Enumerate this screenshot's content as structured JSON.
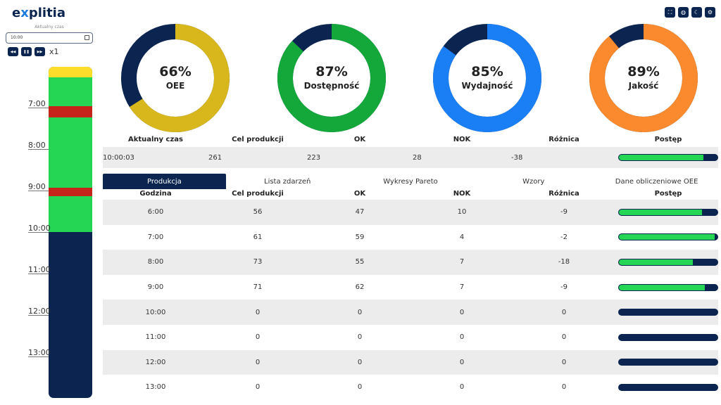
{
  "logo": {
    "text_a": "e",
    "text_x": "x",
    "text_b": "plitia"
  },
  "sidebar": {
    "time_label": "Aktualny czas",
    "time_value": "10:00",
    "speed": "x1",
    "ticks": [
      "7:00",
      "8:00",
      "9:00",
      "10:00",
      "11:00",
      "12:00",
      "13:00"
    ]
  },
  "top_icons": [
    "fullscreen-icon",
    "globe-icon",
    "moon-icon",
    "gear-icon"
  ],
  "colors": {
    "navy": "#0b2550",
    "green": "#25d654",
    "red": "#c4241a",
    "yellow": "#fbdd2a"
  },
  "kpis": [
    {
      "label": "OEE",
      "value": "66%",
      "fraction": 0.66,
      "color": "#d8b71c"
    },
    {
      "label": "Dostępność",
      "value": "87%",
      "fraction": 0.87,
      "color": "#14a83a"
    },
    {
      "label": "Wydajność",
      "value": "85%",
      "fraction": 0.85,
      "color": "#1a7ff5"
    },
    {
      "label": "Jakość",
      "value": "89%",
      "fraction": 0.89,
      "color": "#fb8a2e"
    }
  ],
  "summary": {
    "headers": [
      "Aktualny czas",
      "Cel produkcji",
      "OK",
      "NOK",
      "Różnica",
      "Postęp"
    ],
    "values": [
      "10:00:03",
      "261",
      "223",
      "28",
      "-38"
    ],
    "progress": 0.854
  },
  "tabs": [
    "Produkcja",
    "Lista zdarzeń",
    "Wykresy Pareto",
    "Wzory",
    "Dane obliczeniowe OEE"
  ],
  "table": {
    "headers": [
      "Godzina",
      "Cel produkcji",
      "OK",
      "NOK",
      "Różnica",
      "Postęp"
    ],
    "rows": [
      {
        "c": [
          "6:00",
          "56",
          "47",
          "10",
          "-9"
        ],
        "p": 0.84
      },
      {
        "c": [
          "7:00",
          "61",
          "59",
          "4",
          "-2"
        ],
        "p": 0.97
      },
      {
        "c": [
          "8:00",
          "73",
          "55",
          "7",
          "-18"
        ],
        "p": 0.75
      },
      {
        "c": [
          "9:00",
          "71",
          "62",
          "7",
          "-9"
        ],
        "p": 0.87
      },
      {
        "c": [
          "10:00",
          "0",
          "0",
          "0",
          "0"
        ],
        "p": 0
      },
      {
        "c": [
          "11:00",
          "0",
          "0",
          "0",
          "0"
        ],
        "p": 0
      },
      {
        "c": [
          "12:00",
          "0",
          "0",
          "0",
          "0"
        ],
        "p": 0
      },
      {
        "c": [
          "13:00",
          "0",
          "0",
          "0",
          "0"
        ],
        "p": 0
      }
    ]
  }
}
